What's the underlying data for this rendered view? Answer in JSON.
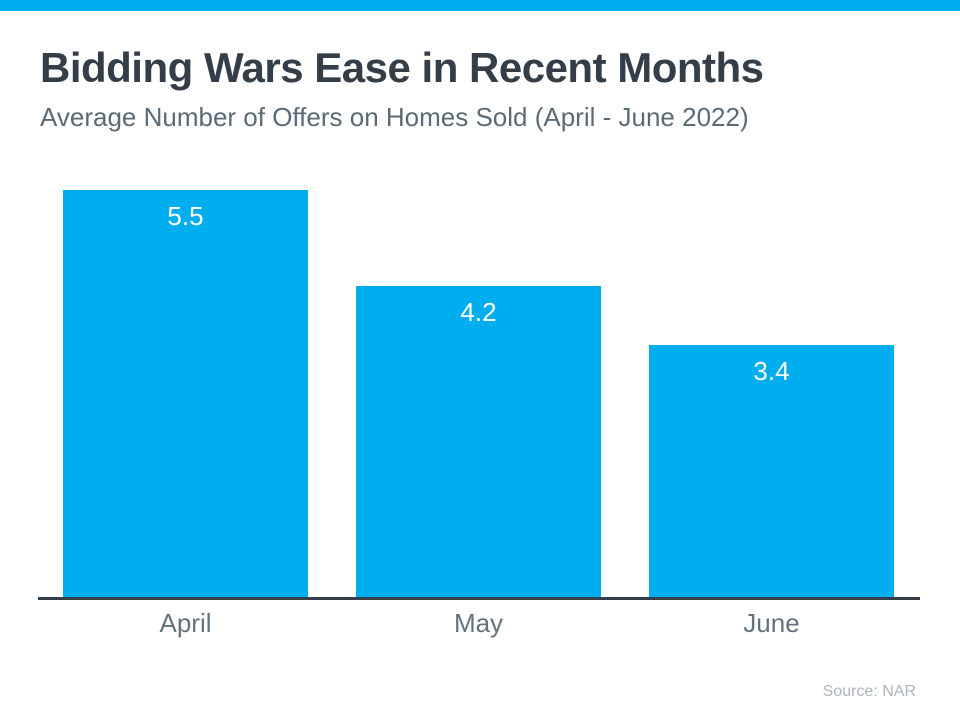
{
  "page": {
    "accent_color": "#00AEEF",
    "title_color": "#333E48",
    "subtitle_color": "#5A6B75",
    "axis_color": "#333E48",
    "month_label_color": "#63737E",
    "source_color": "#ADB5BC"
  },
  "header": {
    "title": "Bidding Wars Ease in Recent Months",
    "subtitle": "Average Number of Offers on Homes Sold (April - June 2022)"
  },
  "chart_data": {
    "type": "bar",
    "categories": [
      "April",
      "May",
      "June"
    ],
    "values": [
      5.5,
      4.2,
      3.4
    ],
    "value_labels": [
      "5.5",
      "4.2",
      "3.4"
    ],
    "title": "Bidding Wars Ease in Recent Months",
    "subtitle": "Average Number of Offers on Homes Sold (April - June 2022)",
    "xlabel": "",
    "ylabel": "",
    "ylim": [
      0,
      5.5
    ],
    "grid": false,
    "legend": false,
    "bar_color": "#00AEEF",
    "value_label_color": "#ffffff",
    "value_label_position": "inside-top",
    "axis_line_color": "#333E48"
  },
  "footer": {
    "source": "Source: NAR"
  }
}
